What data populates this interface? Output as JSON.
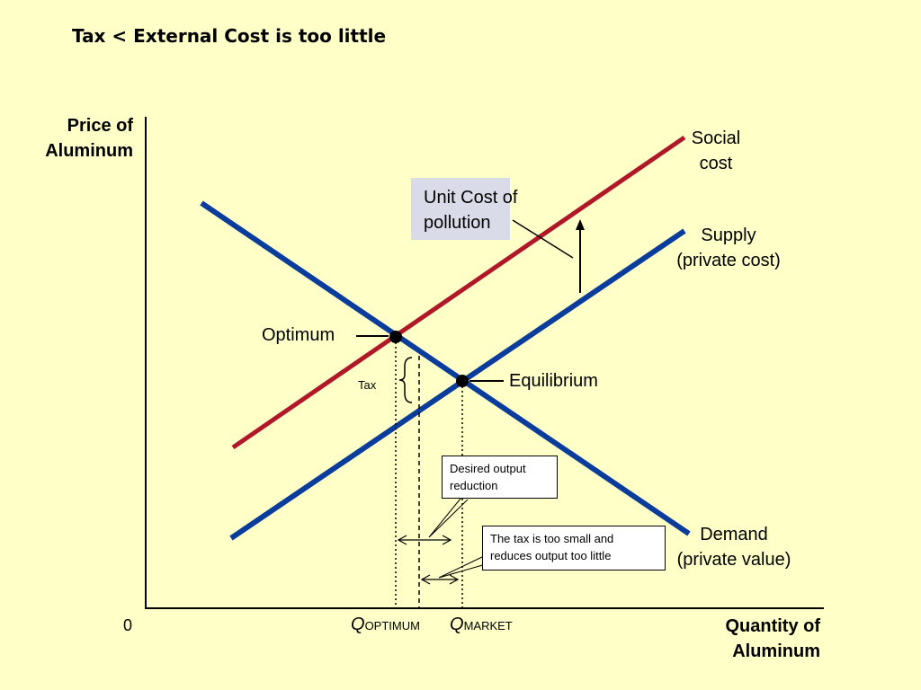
{
  "title": "Tax < External Cost is too little",
  "axes": {
    "y_label_line1": "Price of",
    "y_label_line2": "Aluminum",
    "x_label_line1": "Quantity of",
    "x_label_line2": "Aluminum",
    "origin": "0"
  },
  "curves": {
    "social_cost_line1": "Social",
    "social_cost_line2": "cost",
    "supply_line1": "Supply",
    "supply_line2": "(private cost)",
    "demand_line1": "Demand",
    "demand_line2": "(private value)"
  },
  "points": {
    "optimum": "Optimum",
    "equilibrium": "Equilibrium"
  },
  "annotations": {
    "unit_cost_line1": "Unit Cost of",
    "unit_cost_line2": "pollution",
    "tax": "Tax",
    "desired_reduction_line1": "Desired output",
    "desired_reduction_line2": "reduction",
    "tax_too_small_line1": "The tax is too small and",
    "tax_too_small_line2": "reduces output too little"
  },
  "quantities": {
    "q_optimum_letter": "Q",
    "q_optimum_sub": "OPTIMUM",
    "q_market_letter": "Q",
    "q_market_sub": "MARKET"
  },
  "colors": {
    "background": "#FFFFC8",
    "social_cost": "#B0182A",
    "supply_demand": "#0A3C9C",
    "unit_cost_box": "#D9DCE8"
  }
}
